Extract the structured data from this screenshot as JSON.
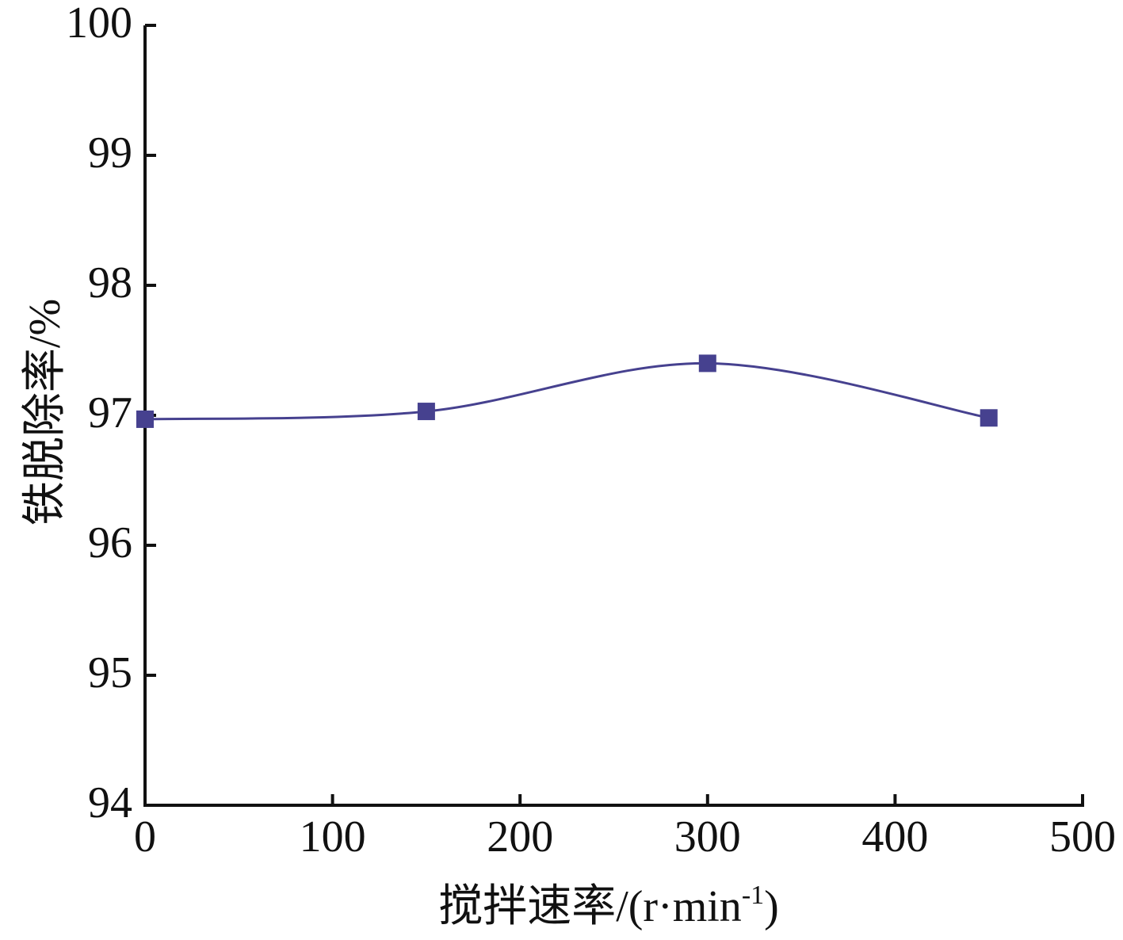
{
  "chart_data": {
    "type": "line",
    "title": "",
    "xlabel": "搅拌速率/(r·min⁻¹)",
    "xlabel_parts": {
      "main": "搅拌速率/(r·min",
      "sup": "-1",
      "end": ")"
    },
    "ylabel": "铁脱除率/%",
    "xlim": [
      0,
      500
    ],
    "ylim": [
      94,
      100
    ],
    "xticks": [
      0,
      100,
      200,
      300,
      400,
      500
    ],
    "yticks": [
      94,
      95,
      96,
      97,
      98,
      99,
      100
    ],
    "grid": false,
    "line_color": "#46418f",
    "marker": "square",
    "series": [
      {
        "x": [
          0,
          150,
          300,
          450
        ],
        "values": [
          96.97,
          97.03,
          97.4,
          96.98
        ]
      }
    ]
  }
}
